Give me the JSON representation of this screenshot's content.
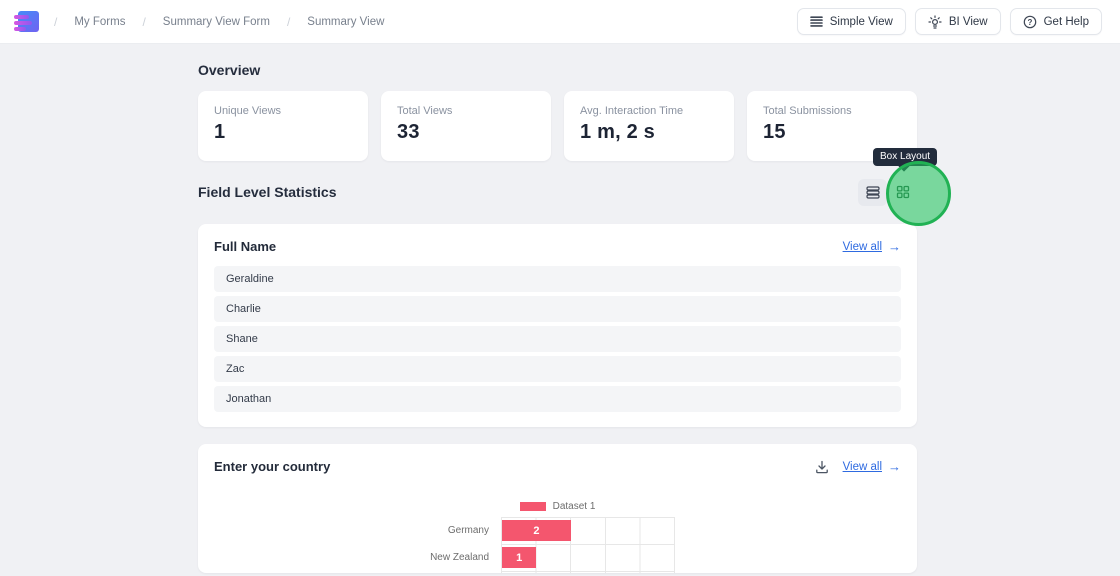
{
  "topbar": {
    "separator": "/",
    "breadcrumb": [
      "My Forms",
      "Summary View Form",
      "Summary View"
    ],
    "buttons": [
      {
        "label": "Simple View",
        "icon": "list-icon"
      },
      {
        "label": "BI View",
        "icon": "bulb-icon"
      },
      {
        "label": "Get Help",
        "icon": "help-icon"
      }
    ]
  },
  "overview": {
    "title": "Overview",
    "stats": [
      {
        "label": "Unique Views",
        "value": "1"
      },
      {
        "label": "Total Views",
        "value": "33"
      },
      {
        "label": "Avg. Interaction Time",
        "value": "1 m, 2 s"
      },
      {
        "label": "Total Submissions",
        "value": "15"
      }
    ]
  },
  "field_stats": {
    "title": "Field Level Statistics",
    "layout_tooltip": "Box Layout",
    "full_name": {
      "title": "Full Name",
      "view_all": "View all",
      "entries": [
        "Geraldine",
        "Charlie",
        "Shane",
        "Zac",
        "Jonathan"
      ]
    },
    "country": {
      "title": "Enter your country",
      "view_all": "View all"
    }
  },
  "chart_data": {
    "type": "bar",
    "orientation": "horizontal",
    "title": "Enter your country",
    "categories": [
      "Germany",
      "New Zealand"
    ],
    "values": [
      2,
      1
    ],
    "series_label": "Dataset 1",
    "xlim": [
      0,
      5
    ],
    "grid": true,
    "legend_position": "top-center",
    "bar_color": "#f4566e",
    "value_label_style": "white-inside-bar"
  },
  "icons": {
    "arrow_right": "→"
  },
  "colors": {
    "page_bg": "#f0f1f4",
    "link_blue": "#2e6ae0",
    "bar_red": "#f4566e",
    "highlight_green": "#21b254",
    "tooltip_bg": "#222c3c"
  }
}
